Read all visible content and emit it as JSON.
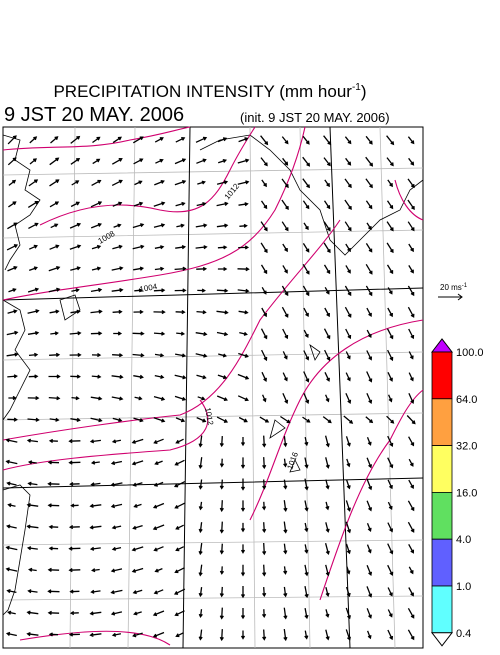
{
  "header": {
    "title": "PRECIPITATION INTENSITY (mm hour",
    "title_exponent": "-1",
    "title_close": ")",
    "valid_time": "9 JST 20 MAY. 2006",
    "init_time": "(init. 9 JST 20 MAY. 2006)"
  },
  "reference_vector": {
    "label": "20 ms",
    "exponent": "-1"
  },
  "contour_labels": [
    "1008",
    "1012",
    "1004",
    "1012",
    "1016"
  ],
  "colorbar": {
    "labels": [
      "100.0",
      "64.0",
      "32.0",
      "16.0",
      "4.0",
      "1.0",
      "0.4"
    ],
    "colors": [
      "#ff0000",
      "#ffa040",
      "#ffff60",
      "#60e060",
      "#6060ff",
      "#60ffff"
    ],
    "over_color": "#c000ff",
    "under_color": "#ffffff"
  }
}
